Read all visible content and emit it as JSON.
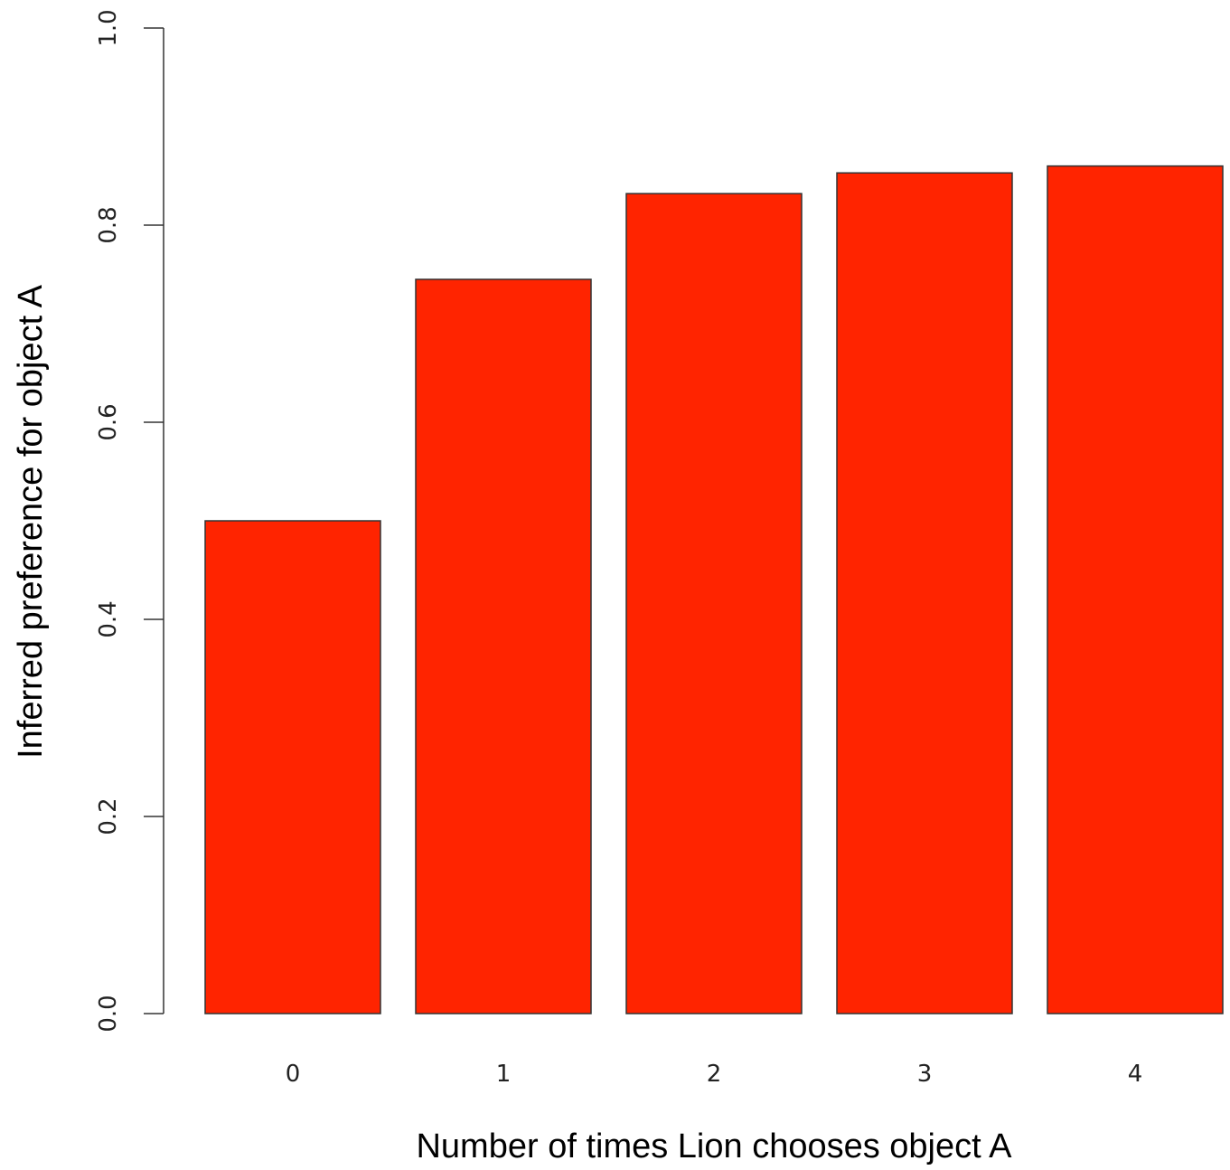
{
  "chart_data": {
    "type": "bar",
    "title": "",
    "xlabel": "Number of times Lion chooses object A",
    "ylabel": "Inferred preference for object A",
    "categories": [
      "0",
      "1",
      "2",
      "3",
      "4"
    ],
    "values": [
      0.5,
      0.745,
      0.832,
      0.853,
      0.86
    ],
    "ylim": [
      0,
      1
    ],
    "yticks": [
      "0.0",
      "0.2",
      "0.4",
      "0.6",
      "0.8",
      "1.0"
    ],
    "bar_color": "#FF2400",
    "grid": false,
    "legend": "none"
  }
}
